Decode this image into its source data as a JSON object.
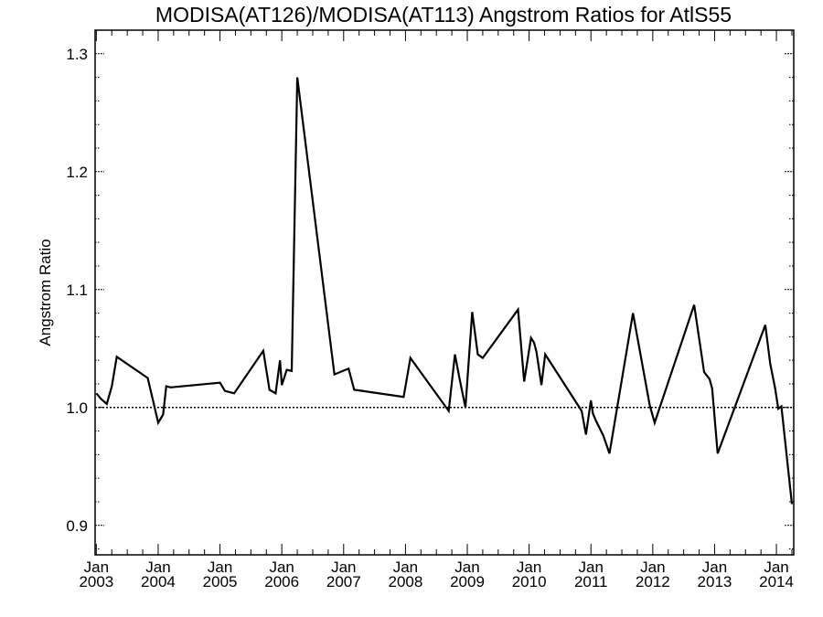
{
  "chart_data": {
    "type": "line",
    "title": "MODISA(AT126)/MODISA(AT113)  Angstrom Ratios for AtlS55",
    "xlabel": "",
    "ylabel": "Angstrom Ratio",
    "x_tick_labels": [
      {
        "month": "Jan",
        "year": "2003"
      },
      {
        "month": "Jan",
        "year": "2004"
      },
      {
        "month": "Jan",
        "year": "2005"
      },
      {
        "month": "Jan",
        "year": "2006"
      },
      {
        "month": "Jan",
        "year": "2007"
      },
      {
        "month": "Jan",
        "year": "2008"
      },
      {
        "month": "Jan",
        "year": "2009"
      },
      {
        "month": "Jan",
        "year": "2010"
      },
      {
        "month": "Jan",
        "year": "2011"
      },
      {
        "month": "Jan",
        "year": "2012"
      },
      {
        "month": "Jan",
        "year": "2013"
      },
      {
        "month": "Jan",
        "year": "2014"
      }
    ],
    "y_ticks": [
      "0.9",
      "1.0",
      "1.1",
      "1.2",
      "1.3"
    ],
    "xlim": [
      2002.98,
      2014.28
    ],
    "ylim": [
      0.875,
      1.32
    ],
    "reference_line": 1.0,
    "grid": false,
    "series": [
      {
        "values": [
          [
            2003.0,
            1.012
          ],
          [
            2003.08,
            1.007
          ],
          [
            2003.17,
            1.003
          ],
          [
            2003.25,
            1.018
          ],
          [
            2003.33,
            1.043
          ],
          [
            2003.83,
            1.025
          ],
          [
            2003.92,
            1.005
          ],
          [
            2004.0,
            0.987
          ],
          [
            2004.08,
            0.994
          ],
          [
            2004.13,
            1.018
          ],
          [
            2004.2,
            1.017
          ],
          [
            2005.0,
            1.021
          ],
          [
            2005.08,
            1.014
          ],
          [
            2005.23,
            1.012
          ],
          [
            2005.7,
            1.048
          ],
          [
            2005.8,
            1.015
          ],
          [
            2005.9,
            1.012
          ],
          [
            2005.97,
            1.04
          ],
          [
            2006.0,
            1.019
          ],
          [
            2006.08,
            1.032
          ],
          [
            2006.16,
            1.031
          ],
          [
            2006.25,
            1.28
          ],
          [
            2006.85,
            1.028
          ],
          [
            2007.08,
            1.033
          ],
          [
            2007.17,
            1.015
          ],
          [
            2007.97,
            1.009
          ],
          [
            2008.08,
            1.042
          ],
          [
            2008.7,
            0.997
          ],
          [
            2008.8,
            1.045
          ],
          [
            2008.88,
            1.023
          ],
          [
            2008.97,
            1.0
          ],
          [
            2009.08,
            1.081
          ],
          [
            2009.17,
            1.045
          ],
          [
            2009.25,
            1.042
          ],
          [
            2009.82,
            1.083
          ],
          [
            2009.92,
            1.022
          ],
          [
            2010.03,
            1.059
          ],
          [
            2010.08,
            1.055
          ],
          [
            2010.12,
            1.047
          ],
          [
            2010.2,
            1.019
          ],
          [
            2010.26,
            1.045
          ],
          [
            2010.85,
            0.997
          ],
          [
            2010.92,
            0.977
          ],
          [
            2011.0,
            1.006
          ],
          [
            2011.03,
            0.995
          ],
          [
            2011.08,
            0.989
          ],
          [
            2011.2,
            0.976
          ],
          [
            2011.3,
            0.961
          ],
          [
            2011.68,
            1.08
          ],
          [
            2011.95,
            1.002
          ],
          [
            2012.03,
            0.987
          ],
          [
            2012.67,
            1.087
          ],
          [
            2012.83,
            1.03
          ],
          [
            2012.92,
            1.024
          ],
          [
            2012.96,
            1.016
          ],
          [
            2013.05,
            0.961
          ],
          [
            2013.82,
            1.07
          ],
          [
            2013.9,
            1.037
          ],
          [
            2013.98,
            1.016
          ],
          [
            2014.03,
            0.999
          ],
          [
            2014.08,
            1.001
          ],
          [
            2014.25,
            0.918
          ]
        ]
      }
    ]
  }
}
